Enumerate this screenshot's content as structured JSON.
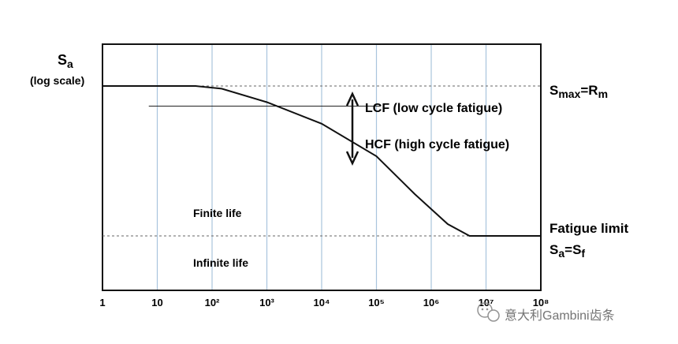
{
  "chart_data": {
    "type": "line",
    "x_scale": "log",
    "y_scale": "log",
    "grid": true,
    "xlim": [
      1,
      100000000
    ],
    "x_ticks": [
      {
        "value": 1,
        "label": "1"
      },
      {
        "value": 10,
        "label": "10"
      },
      {
        "value": 100,
        "label": "10²"
      },
      {
        "value": 1000,
        "label": "10³"
      },
      {
        "value": 10000,
        "label": "10⁴"
      },
      {
        "value": 100000,
        "label": "10⁵"
      },
      {
        "value": 1000000,
        "label": "10⁶"
      },
      {
        "value": 10000000,
        "label": "10⁷"
      },
      {
        "value": 100000000,
        "label": "10⁸"
      }
    ],
    "ylabel": {
      "main": "S",
      "sub": "a",
      "note": "(log scale)"
    },
    "series": [
      {
        "points": [
          {
            "x": 1,
            "y": 1.0
          },
          {
            "x": 50,
            "y": 1.0
          },
          {
            "x": 150,
            "y": 0.96
          },
          {
            "x": 1000,
            "y": 0.78
          },
          {
            "x": 10000,
            "y": 0.56
          },
          {
            "x": 100000,
            "y": 0.34
          },
          {
            "x": 500000,
            "y": 0.19
          },
          {
            "x": 2000000,
            "y": 0.12
          },
          {
            "x": 5000000,
            "y": 0.1
          },
          {
            "x": 100000000,
            "y": 0.1
          }
        ]
      }
    ],
    "ylim": [
      -0.3,
      1.2
    ],
    "reference_lines": {
      "upper": {
        "y": 1.0,
        "style": "dashed",
        "label_main": "S",
        "label_sub": "max",
        "label_eq": "=R",
        "label_sub2": "m"
      },
      "lower": {
        "y": 0.1,
        "style": "dashed",
        "label_line1": "Fatigue limit",
        "label_main": "S",
        "label_sub": "a",
        "label_eq": "=S",
        "label_sub2": "f"
      },
      "lcf_hcf": {
        "y": 0.78,
        "x_from": 7,
        "x_to": 120000
      }
    },
    "annotations": {
      "lcf": "LCF (low cycle fatigue)",
      "hcf": "HCF (high cycle fatigue)",
      "finite": "Finite life",
      "infinite": "Infinite life"
    }
  },
  "watermark": {
    "icon": "wechat-icon",
    "text": "意大利Gambini齿条"
  }
}
